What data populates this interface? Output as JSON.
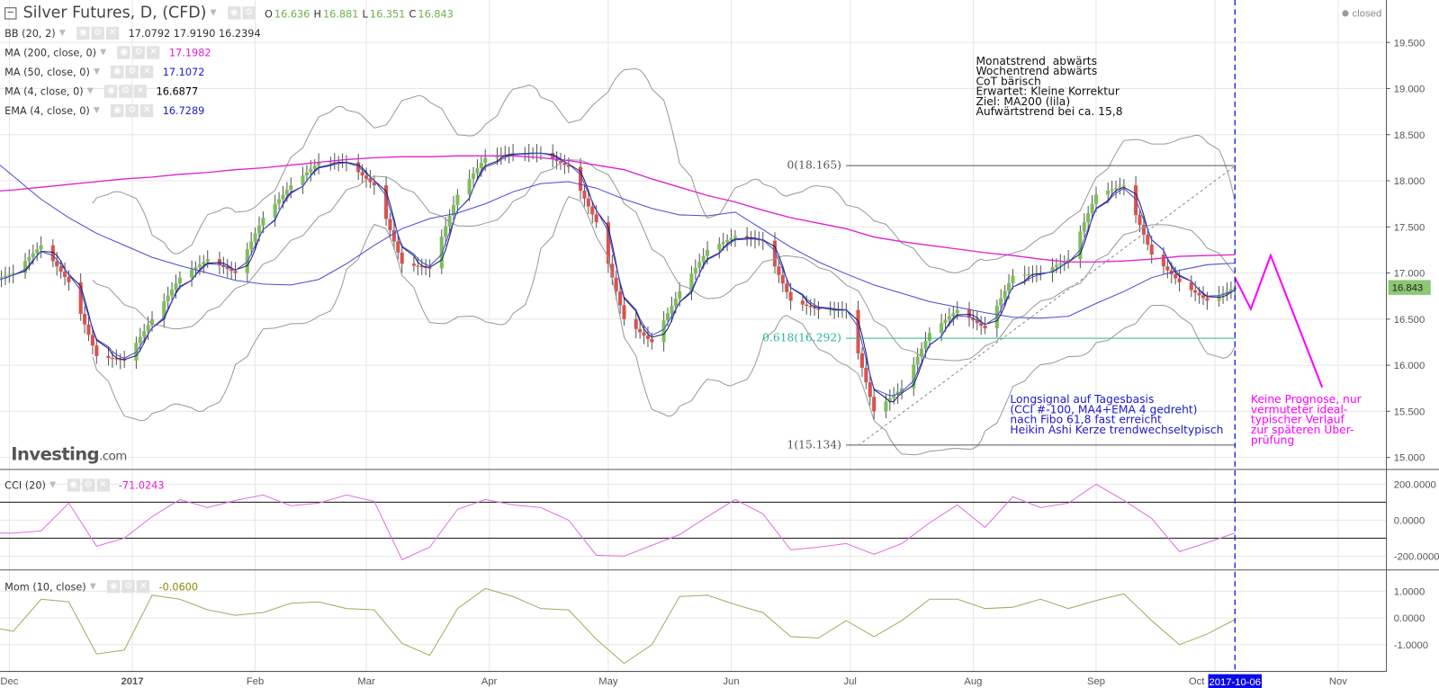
{
  "header": {
    "symbol": "Silver Futures, D, (CFD)",
    "ohlc": [
      {
        "k": "O",
        "v": "16.636"
      },
      {
        "k": "H",
        "v": "16.881"
      },
      {
        "k": "L",
        "v": "16.351"
      },
      {
        "k": "C",
        "v": "16.843"
      }
    ],
    "status": "closed"
  },
  "indicators": [
    {
      "label": "BB (20, 2)",
      "values": "17.0792 17.9190 16.2394",
      "color": "#333333"
    },
    {
      "label": "MA (200, close, 0)",
      "values": "17.1982",
      "color": "#e020d0"
    },
    {
      "label": "MA (50, close, 0)",
      "values": "17.1072",
      "color": "#1a1acc"
    },
    {
      "label": "MA (4, close, 0)",
      "values": "16.6877",
      "color": "#000000"
    },
    {
      "label": "EMA (4, close, 0)",
      "values": "16.7289",
      "color": "#1a1acc"
    }
  ],
  "cci": {
    "label": "CCI (20)",
    "value": "-71.0243",
    "color": "#e020d0"
  },
  "mom": {
    "label": "Mom (10, close)",
    "value": "-0.0600",
    "color": "#8a8a00"
  },
  "logo": {
    "text": "Investing",
    "suffix": ".com"
  },
  "current_price": "16.843",
  "cursor_date": "2017-10-06",
  "annotations": {
    "outlook": "Monatstrend  abwärts\nWochentrend abwärts\nCoT bärisch\nErwartet: Kleine Korrektur\nZiel: MA200 (lila)\nAufwärtstrend bei ca. 15,8",
    "signal": "Longsignal auf Tagesbasis\n(CCI #-100, MA4+EMA 4 gedreht)\nnach Fibo 61,8 fast erreicht\nHeikin Ashi Kerze trendwechseltypisch",
    "forecast": "Keine Prognose, nur\nvermuteter ideal-\ntypischer Verlauf\nzur späteren Über-\nprüfung",
    "fib": [
      {
        "label": "0(18.165)",
        "price": 18.165,
        "color": "#555555"
      },
      {
        "label": "0.618(16.292)",
        "price": 16.292,
        "color": "#2bb39a"
      },
      {
        "label": "1(15.134)",
        "price": 15.134,
        "color": "#555555"
      }
    ],
    "fib_start": "2017-06-16",
    "trendline": {
      "from": [
        "2017-07-03",
        15.13
      ],
      "to": [
        "2017-10-06",
        18.16
      ]
    },
    "forecast_path": [
      [
        "2017-10-06",
        16.95
      ],
      [
        "2017-10-10",
        16.61
      ],
      [
        "2017-10-15",
        17.19
      ],
      [
        "2017-10-28",
        15.76
      ]
    ]
  },
  "chart_data": {
    "type": "candlestick",
    "x_ticks": [
      {
        "label": "Dec",
        "date": "2016-12-01"
      },
      {
        "label": "2017",
        "date": "2017-01-01"
      },
      {
        "label": "Feb",
        "date": "2017-02-01"
      },
      {
        "label": "Mar",
        "date": "2017-03-01"
      },
      {
        "label": "Apr",
        "date": "2017-04-01"
      },
      {
        "label": "May",
        "date": "2017-05-01"
      },
      {
        "label": "Jun",
        "date": "2017-06-01"
      },
      {
        "label": "Jul",
        "date": "2017-07-01"
      },
      {
        "label": "Aug",
        "date": "2017-08-01"
      },
      {
        "label": "Sep",
        "date": "2017-09-01"
      },
      {
        "label": "Oct",
        "date": "2017-10-01"
      },
      {
        "label": "Nov",
        "date": "2017-11-01"
      }
    ],
    "price_axis": {
      "ticks": [
        "19.500",
        "19.000",
        "18.500",
        "18.000",
        "17.500",
        "17.000",
        "16.500",
        "16.000",
        "15.500",
        "15.000"
      ],
      "ylim": [
        14.88,
        19.95
      ]
    },
    "cci_axis": {
      "ticks": [
        "200.0000",
        "0.0000",
        "-200.0000"
      ],
      "levels": [
        100,
        -100
      ]
    },
    "mom_axis": {
      "ticks": [
        "1.0000",
        "0.0000",
        "-1.0000"
      ]
    },
    "dates": [
      "2016-11-25",
      "2016-12-02",
      "2016-12-09",
      "2016-12-16",
      "2016-12-23",
      "2016-12-30",
      "2017-01-06",
      "2017-01-13",
      "2017-01-20",
      "2017-01-27",
      "2017-02-03",
      "2017-02-10",
      "2017-02-17",
      "2017-02-24",
      "2017-03-03",
      "2017-03-10",
      "2017-03-17",
      "2017-03-24",
      "2017-03-31",
      "2017-04-07",
      "2017-04-14",
      "2017-04-21",
      "2017-04-28",
      "2017-05-05",
      "2017-05-12",
      "2017-05-19",
      "2017-05-26",
      "2017-06-02",
      "2017-06-09",
      "2017-06-16",
      "2017-06-23",
      "2017-06-30",
      "2017-07-07",
      "2017-07-14",
      "2017-07-21",
      "2017-07-28",
      "2017-08-04",
      "2017-08-11",
      "2017-08-18",
      "2017-08-25",
      "2017-09-01",
      "2017-09-08",
      "2017-09-15",
      "2017-09-22",
      "2017-09-29",
      "2017-10-06"
    ],
    "close": [
      16.9,
      17.0,
      17.3,
      16.9,
      16.1,
      16.05,
      16.5,
      16.95,
      17.15,
      17.0,
      17.6,
      17.95,
      18.2,
      18.2,
      17.95,
      17.1,
      17.05,
      17.85,
      18.25,
      18.3,
      18.3,
      18.15,
      17.55,
      16.5,
      16.25,
      16.8,
      17.25,
      17.4,
      17.35,
      16.7,
      16.6,
      16.6,
      15.5,
      15.75,
      16.35,
      16.6,
      16.4,
      16.97,
      17.0,
      17.15,
      17.85,
      17.95,
      17.2,
      16.9,
      16.7,
      16.843
    ],
    "ma200": [
      17.88,
      17.9,
      17.93,
      17.96,
      17.99,
      18.02,
      18.04,
      18.07,
      18.09,
      18.12,
      18.14,
      18.17,
      18.2,
      18.23,
      18.25,
      18.26,
      18.26,
      18.27,
      18.27,
      18.27,
      18.25,
      18.22,
      18.17,
      18.12,
      18.02,
      17.93,
      17.84,
      17.77,
      17.68,
      17.6,
      17.54,
      17.48,
      17.39,
      17.34,
      17.3,
      17.26,
      17.22,
      17.19,
      17.15,
      17.12,
      17.12,
      17.13,
      17.15,
      17.18,
      17.19,
      17.198
    ],
    "ma50": [
      18.3,
      18.05,
      17.8,
      17.6,
      17.43,
      17.3,
      17.17,
      17.08,
      17.0,
      16.92,
      16.88,
      16.87,
      16.93,
      17.1,
      17.3,
      17.48,
      17.59,
      17.65,
      17.75,
      17.88,
      17.97,
      17.99,
      17.92,
      17.8,
      17.7,
      17.63,
      17.62,
      17.66,
      17.47,
      17.28,
      17.12,
      16.99,
      16.87,
      16.78,
      16.69,
      16.63,
      16.57,
      16.52,
      16.51,
      16.53,
      16.67,
      16.8,
      16.95,
      17.03,
      17.09,
      17.107
    ],
    "cci": [
      -72,
      -72,
      -60,
      95,
      -145,
      -100,
      20,
      115,
      70,
      110,
      140,
      80,
      95,
      140,
      105,
      -220,
      -150,
      60,
      115,
      85,
      70,
      0,
      -195,
      -200,
      -140,
      -80,
      20,
      115,
      35,
      -165,
      -150,
      -130,
      -190,
      -130,
      -15,
      85,
      -40,
      130,
      70,
      95,
      200,
      110,
      10,
      -175,
      -125,
      -71.0243
    ],
    "mom": [
      -0.3,
      -0.5,
      0.7,
      0.6,
      -1.35,
      -1.2,
      0.85,
      0.7,
      0.3,
      0.1,
      0.2,
      0.55,
      0.6,
      0.35,
      0.3,
      -0.95,
      -1.4,
      0.35,
      1.1,
      0.8,
      0.35,
      0.3,
      -0.8,
      -1.7,
      -1.0,
      0.8,
      0.85,
      0.5,
      0.2,
      -0.7,
      -0.75,
      -0.1,
      -0.7,
      -0.1,
      0.7,
      0.7,
      0.35,
      0.4,
      0.7,
      0.35,
      0.65,
      0.9,
      -0.1,
      -1.0,
      -0.6,
      -0.06
    ],
    "colors": {
      "up": "#7dbf5b",
      "down": "#d9534f",
      "bb": "#9a9a9a",
      "ma200": "#e020d0",
      "ma50": "#4a4ad8",
      "ma4": "#1a1a5a",
      "cci": "#e070e0",
      "mom": "#a8a860",
      "forecast": "#ff00ff",
      "cursor": "#1a1acc"
    }
  }
}
